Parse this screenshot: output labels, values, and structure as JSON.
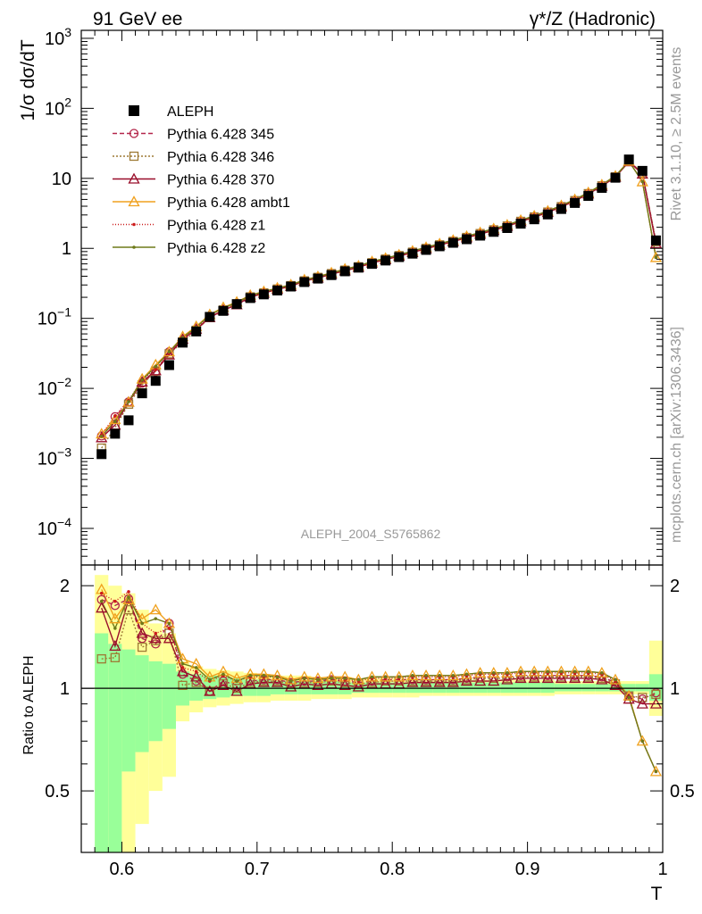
{
  "header": {
    "left": "91 GeV ee",
    "right": "γ*/Z (Hadronic)"
  },
  "side": {
    "rivet": "Rivet 3.1.10, ≥ 2.5M events",
    "mcplots": "mcplots.cern.ch [arXiv:1306.3436]"
  },
  "watermark": "ALEPH_2004_S5765862",
  "axes": {
    "ylabel_top": "1/σ  dσ/dT",
    "ylabel_bottom": "Ratio to ALEPH",
    "xlabel": "T",
    "xticks": [
      "0.6",
      "0.7",
      "0.8",
      "0.9",
      "1"
    ],
    "yticks_top": [
      {
        "base": "10",
        "exp": "3",
        "v": 1000
      },
      {
        "base": "10",
        "exp": "2",
        "v": 100
      },
      {
        "base": "10",
        "exp": "",
        "v": 10
      },
      {
        "base": "1",
        "exp": "",
        "v": 1
      },
      {
        "base": "10",
        "exp": "−1",
        "v": 0.1
      },
      {
        "base": "10",
        "exp": "−2",
        "v": 0.01
      },
      {
        "base": "10",
        "exp": "−3",
        "v": 0.001
      },
      {
        "base": "10",
        "exp": "−4",
        "v": 0.0001
      }
    ],
    "yticks_bottom": [
      "2",
      "1",
      "0.5"
    ]
  },
  "colors": {
    "aleph": "#000000",
    "p345": "#b3264a",
    "p346": "#9e7a35",
    "p370": "#990e2a",
    "ambt1": "#f0a11e",
    "z1": "#cc1b1b",
    "z2": "#6e7a1a",
    "band_inner": "#99ff99",
    "band_outer": "#ffff99"
  },
  "chart_data": {
    "type": "line",
    "x_range": [
      0.57,
      1.0
    ],
    "top_ylim": [
      3e-05,
      1300
    ],
    "top_log": true,
    "ratio_ylim": [
      0.33,
      2.3
    ],
    "ratio_log": true,
    "legend_position": "top-left",
    "x": [
      0.585,
      0.595,
      0.605,
      0.615,
      0.625,
      0.635,
      0.645,
      0.655,
      0.665,
      0.675,
      0.685,
      0.695,
      0.705,
      0.715,
      0.725,
      0.735,
      0.745,
      0.755,
      0.765,
      0.775,
      0.785,
      0.795,
      0.805,
      0.815,
      0.825,
      0.835,
      0.845,
      0.855,
      0.865,
      0.875,
      0.885,
      0.895,
      0.905,
      0.915,
      0.925,
      0.935,
      0.945,
      0.955,
      0.965,
      0.975,
      0.985,
      0.995
    ],
    "aleph": [
      0.00115,
      0.00225,
      0.0035,
      0.0085,
      0.0128,
      0.0215,
      0.045,
      0.065,
      0.105,
      0.128,
      0.16,
      0.195,
      0.22,
      0.25,
      0.285,
      0.33,
      0.37,
      0.415,
      0.47,
      0.53,
      0.6,
      0.67,
      0.75,
      0.84,
      0.95,
      1.07,
      1.2,
      1.35,
      1.52,
      1.72,
      1.95,
      2.25,
      2.6,
      3.05,
      3.65,
      4.45,
      5.6,
      7.3,
      10.2,
      18.6,
      12.8,
      1.3
    ],
    "band_inner": [
      [
        0.18,
        1.45
      ],
      [
        0.2,
        1.35
      ],
      [
        0.57,
        1.3
      ],
      [
        0.65,
        1.25
      ],
      [
        0.7,
        1.2
      ],
      [
        0.76,
        1.18
      ],
      [
        0.89,
        1.12
      ],
      [
        0.92,
        1.1
      ],
      [
        0.93,
        1.09
      ],
      [
        0.94,
        1.08
      ],
      [
        0.95,
        1.07
      ],
      [
        0.95,
        1.06
      ],
      [
        0.95,
        1.06
      ],
      [
        0.96,
        1.05
      ],
      [
        0.96,
        1.05
      ],
      [
        0.96,
        1.05
      ],
      [
        0.96,
        1.05
      ],
      [
        0.96,
        1.05
      ],
      [
        0.96,
        1.04
      ],
      [
        0.97,
        1.04
      ],
      [
        0.97,
        1.04
      ],
      [
        0.97,
        1.04
      ],
      [
        0.97,
        1.04
      ],
      [
        0.97,
        1.04
      ],
      [
        0.97,
        1.04
      ],
      [
        0.97,
        1.04
      ],
      [
        0.97,
        1.04
      ],
      [
        0.97,
        1.04
      ],
      [
        0.97,
        1.04
      ],
      [
        0.97,
        1.04
      ],
      [
        0.97,
        1.04
      ],
      [
        0.97,
        1.04
      ],
      [
        0.97,
        1.04
      ],
      [
        0.97,
        1.04
      ],
      [
        0.98,
        1.03
      ],
      [
        0.98,
        1.03
      ],
      [
        0.98,
        1.03
      ],
      [
        0.98,
        1.03
      ],
      [
        0.98,
        1.03
      ],
      [
        0.98,
        1.03
      ],
      [
        0.98,
        1.03
      ],
      [
        0.92,
        1.1
      ]
    ],
    "band_outer": [
      [
        0.1,
        2.15
      ],
      [
        0.1,
        2.0
      ],
      [
        0.33,
        1.9
      ],
      [
        0.4,
        1.7
      ],
      [
        0.5,
        1.55
      ],
      [
        0.55,
        1.45
      ],
      [
        0.8,
        1.2
      ],
      [
        0.85,
        1.16
      ],
      [
        0.88,
        1.14
      ],
      [
        0.89,
        1.13
      ],
      [
        0.9,
        1.12
      ],
      [
        0.91,
        1.11
      ],
      [
        0.91,
        1.1
      ],
      [
        0.92,
        1.09
      ],
      [
        0.92,
        1.09
      ],
      [
        0.92,
        1.09
      ],
      [
        0.93,
        1.08
      ],
      [
        0.93,
        1.08
      ],
      [
        0.93,
        1.08
      ],
      [
        0.94,
        1.07
      ],
      [
        0.94,
        1.07
      ],
      [
        0.94,
        1.07
      ],
      [
        0.94,
        1.07
      ],
      [
        0.94,
        1.07
      ],
      [
        0.95,
        1.06
      ],
      [
        0.95,
        1.06
      ],
      [
        0.95,
        1.06
      ],
      [
        0.95,
        1.06
      ],
      [
        0.95,
        1.06
      ],
      [
        0.95,
        1.06
      ],
      [
        0.95,
        1.06
      ],
      [
        0.95,
        1.06
      ],
      [
        0.95,
        1.06
      ],
      [
        0.95,
        1.06
      ],
      [
        0.96,
        1.05
      ],
      [
        0.96,
        1.05
      ],
      [
        0.96,
        1.05
      ],
      [
        0.96,
        1.05
      ],
      [
        0.96,
        1.05
      ],
      [
        0.96,
        1.05
      ],
      [
        0.96,
        1.05
      ],
      [
        0.83,
        1.38
      ]
    ],
    "series": [
      {
        "name": "ALEPH",
        "key": "aleph",
        "marker": "square",
        "dash": ""
      },
      {
        "name": "Pythia 6.428 345",
        "key": "p345",
        "marker": "circle",
        "dash": "5,3",
        "ratio": [
          1.82,
          1.75,
          1.83,
          1.4,
          1.35,
          1.55,
          1.1,
          1.05,
          0.98,
          1.05,
          1.02,
          1.05,
          1.06,
          1.06,
          1.04,
          1.05,
          1.05,
          1.06,
          1.05,
          1.04,
          1.05,
          1.06,
          1.06,
          1.06,
          1.06,
          1.06,
          1.06,
          1.07,
          1.08,
          1.08,
          1.08,
          1.09,
          1.09,
          1.09,
          1.09,
          1.09,
          1.09,
          1.08,
          1.04,
          0.95,
          0.93,
          0.97
        ]
      },
      {
        "name": "Pythia 6.428 346",
        "key": "p346",
        "marker": "square-open",
        "dash": "2,2",
        "ratio": [
          1.22,
          1.23,
          1.7,
          1.32,
          1.38,
          1.45,
          1.02,
          1.04,
          0.98,
          1.03,
          1.0,
          1.04,
          1.05,
          1.05,
          1.03,
          1.04,
          1.04,
          1.05,
          1.04,
          1.03,
          1.04,
          1.05,
          1.05,
          1.05,
          1.05,
          1.05,
          1.05,
          1.06,
          1.07,
          1.07,
          1.07,
          1.08,
          1.08,
          1.08,
          1.08,
          1.08,
          1.08,
          1.07,
          1.03,
          0.95,
          0.94,
          0.96
        ]
      },
      {
        "name": "Pythia 6.428 370",
        "key": "p370",
        "marker": "triangle-open",
        "dash": "",
        "ratio": [
          1.72,
          1.33,
          1.82,
          1.45,
          1.4,
          1.4,
          1.12,
          1.08,
          0.98,
          1.02,
          0.98,
          1.03,
          1.04,
          1.04,
          1.01,
          1.03,
          1.02,
          1.03,
          1.02,
          1.01,
          1.03,
          1.03,
          1.03,
          1.04,
          1.04,
          1.04,
          1.04,
          1.05,
          1.05,
          1.05,
          1.06,
          1.07,
          1.07,
          1.07,
          1.07,
          1.07,
          1.07,
          1.06,
          1.02,
          0.93,
          0.9,
          0.9
        ]
      },
      {
        "name": "Pythia 6.428 ambt1",
        "key": "ambt1",
        "marker": "triangle-open",
        "dash": "",
        "ratio": [
          1.95,
          1.6,
          1.82,
          1.6,
          1.7,
          1.55,
          1.22,
          1.18,
          1.08,
          1.12,
          1.07,
          1.1,
          1.1,
          1.09,
          1.06,
          1.08,
          1.07,
          1.08,
          1.08,
          1.06,
          1.08,
          1.08,
          1.08,
          1.09,
          1.09,
          1.09,
          1.09,
          1.1,
          1.11,
          1.11,
          1.11,
          1.12,
          1.12,
          1.12,
          1.12,
          1.12,
          1.12,
          1.11,
          1.06,
          0.95,
          0.7,
          0.57
        ]
      },
      {
        "name": "Pythia 6.428 z1",
        "key": "z1",
        "marker": "dot",
        "dash": "1,2",
        "ratio": [
          1.9,
          1.8,
          1.92,
          1.55,
          1.45,
          1.5,
          1.15,
          1.12,
          1.05,
          1.09,
          1.05,
          1.08,
          1.08,
          1.08,
          1.05,
          1.07,
          1.06,
          1.07,
          1.06,
          1.05,
          1.07,
          1.07,
          1.07,
          1.08,
          1.08,
          1.08,
          1.08,
          1.09,
          1.1,
          1.1,
          1.1,
          1.11,
          1.11,
          1.11,
          1.11,
          1.11,
          1.11,
          1.1,
          1.05,
          0.94,
          0.7,
          0.57
        ]
      },
      {
        "name": "Pythia 6.428 z2",
        "key": "z2",
        "marker": "dot",
        "dash": "",
        "ratio": [
          1.8,
          1.5,
          1.85,
          1.55,
          1.6,
          1.55,
          1.18,
          1.15,
          1.06,
          1.1,
          1.05,
          1.09,
          1.09,
          1.08,
          1.05,
          1.07,
          1.06,
          1.07,
          1.07,
          1.06,
          1.08,
          1.08,
          1.08,
          1.09,
          1.09,
          1.09,
          1.09,
          1.1,
          1.11,
          1.11,
          1.11,
          1.12,
          1.12,
          1.12,
          1.12,
          1.12,
          1.12,
          1.11,
          1.06,
          0.94,
          0.7,
          0.57
        ]
      }
    ]
  }
}
